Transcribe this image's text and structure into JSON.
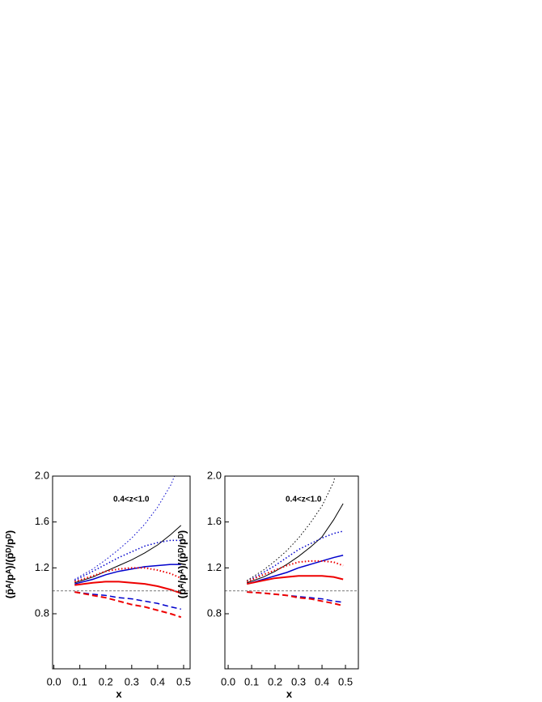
{
  "chart_data": [
    {
      "type": "line",
      "ylabel": "(p̄ᴬ/pᴬ)/(p̄ᴰ/pᴰ)",
      "xlabel": "x",
      "annotation": "0.4<z<1.0",
      "xlim": [
        -0.005,
        0.525
      ],
      "ylim": [
        0.32,
        2.0
      ],
      "xticks": [
        {
          "value": 0,
          "label": "0.0"
        },
        0.1,
        0.2,
        0.3,
        0.4,
        0.5
      ],
      "yticks": [
        0.8,
        1.2,
        1.6,
        {
          "value": 2,
          "label": "2.0"
        }
      ],
      "series": [
        {
          "color": "#000000",
          "dash": "solid",
          "width": 1,
          "x": [
            0.08,
            0.15,
            0.2,
            0.25,
            0.3,
            0.35,
            0.4,
            0.45,
            0.49
          ],
          "values": [
            1.07,
            1.12,
            1.17,
            1.22,
            1.27,
            1.33,
            1.4,
            1.49,
            1.57
          ]
        },
        {
          "color": "#0000cc",
          "dash": "dotted",
          "width": 1,
          "x": [
            0.08,
            0.15,
            0.2,
            0.25,
            0.3,
            0.35,
            0.4,
            0.45,
            0.465
          ],
          "values": [
            1.1,
            1.19,
            1.27,
            1.36,
            1.46,
            1.58,
            1.73,
            1.92,
            2.0
          ]
        },
        {
          "color": "#0000cc",
          "dash": "dotted",
          "width": 1.5,
          "x": [
            0.08,
            0.15,
            0.2,
            0.25,
            0.3,
            0.35,
            0.4,
            0.45,
            0.49
          ],
          "values": [
            1.09,
            1.17,
            1.23,
            1.29,
            1.34,
            1.39,
            1.42,
            1.44,
            1.44
          ]
        },
        {
          "color": "#0000cc",
          "dash": "solid",
          "width": 1.5,
          "x": [
            0.08,
            0.15,
            0.2,
            0.25,
            0.3,
            0.35,
            0.4,
            0.45,
            0.49
          ],
          "values": [
            1.06,
            1.1,
            1.14,
            1.17,
            1.19,
            1.21,
            1.22,
            1.23,
            1.23
          ]
        },
        {
          "color": "#0000cc",
          "dash": "dashed",
          "width": 1.5,
          "x": [
            0.08,
            0.15,
            0.2,
            0.25,
            0.3,
            0.35,
            0.4,
            0.45,
            0.49
          ],
          "values": [
            0.99,
            0.97,
            0.96,
            0.94,
            0.93,
            0.91,
            0.89,
            0.86,
            0.84
          ]
        },
        {
          "color": "#ee0000",
          "dash": "solid",
          "width": 2,
          "x": [
            0.08,
            0.15,
            0.2,
            0.25,
            0.3,
            0.35,
            0.4,
            0.45,
            0.49
          ],
          "values": [
            1.05,
            1.07,
            1.08,
            1.08,
            1.07,
            1.06,
            1.04,
            1.01,
            0.98
          ]
        },
        {
          "color": "#ee0000",
          "dash": "dotted",
          "width": 2,
          "x": [
            0.08,
            0.15,
            0.2,
            0.25,
            0.3,
            0.35,
            0.4,
            0.45,
            0.49
          ],
          "values": [
            1.08,
            1.13,
            1.17,
            1.19,
            1.2,
            1.2,
            1.18,
            1.15,
            1.11
          ]
        },
        {
          "color": "#ee0000",
          "dash": "dashed",
          "width": 2,
          "x": [
            0.08,
            0.15,
            0.2,
            0.25,
            0.3,
            0.35,
            0.4,
            0.45,
            0.49
          ],
          "values": [
            0.99,
            0.96,
            0.94,
            0.91,
            0.88,
            0.86,
            0.83,
            0.8,
            0.77
          ]
        },
        {
          "color": "#888888",
          "dash": "short",
          "width": 1.2,
          "x": [
            -0.005,
            0.525
          ],
          "values": [
            1.0,
            1.0
          ]
        }
      ]
    },
    {
      "type": "line",
      "ylabel": "(p̄ᴬ/pᴬ)/(p̄ᴰ/pᴰ)",
      "xlabel": "x",
      "annotation": "0.4<z<1.0",
      "xlim": [
        -0.014,
        0.555
      ],
      "ylim": [
        0.32,
        2.0
      ],
      "xticks": [
        {
          "value": 0,
          "label": "0.0"
        },
        0.1,
        0.2,
        0.3,
        0.4,
        0.5
      ],
      "yticks": [
        0.8,
        1.2,
        1.6,
        {
          "value": 2,
          "label": "2.0"
        }
      ],
      "series": [
        {
          "color": "#000000",
          "dash": "solid",
          "width": 1,
          "x": [
            0.08,
            0.15,
            0.2,
            0.25,
            0.3,
            0.35,
            0.4,
            0.45,
            0.49
          ],
          "values": [
            1.07,
            1.12,
            1.17,
            1.23,
            1.3,
            1.38,
            1.47,
            1.62,
            1.76
          ]
        },
        {
          "color": "#000000",
          "dash": "dotted",
          "width": 1,
          "x": [
            0.08,
            0.15,
            0.2,
            0.25,
            0.3,
            0.35,
            0.4,
            0.45,
            0.455
          ],
          "values": [
            1.09,
            1.18,
            1.26,
            1.35,
            1.46,
            1.59,
            1.74,
            1.95,
            2.0
          ]
        },
        {
          "color": "#0000cc",
          "dash": "dotted",
          "width": 1.5,
          "x": [
            0.08,
            0.15,
            0.2,
            0.25,
            0.3,
            0.35,
            0.4,
            0.45,
            0.49
          ],
          "values": [
            1.08,
            1.16,
            1.22,
            1.29,
            1.36,
            1.41,
            1.46,
            1.5,
            1.52
          ]
        },
        {
          "color": "#0000cc",
          "dash": "solid",
          "width": 1.5,
          "x": [
            0.08,
            0.15,
            0.2,
            0.25,
            0.3,
            0.35,
            0.4,
            0.45,
            0.49
          ],
          "values": [
            1.06,
            1.1,
            1.13,
            1.16,
            1.2,
            1.23,
            1.26,
            1.29,
            1.31
          ]
        },
        {
          "color": "#0000cc",
          "dash": "dashed",
          "width": 1.5,
          "x": [
            0.08,
            0.15,
            0.2,
            0.25,
            0.3,
            0.35,
            0.4,
            0.45,
            0.49
          ],
          "values": [
            0.99,
            0.98,
            0.97,
            0.96,
            0.95,
            0.94,
            0.93,
            0.91,
            0.9
          ]
        },
        {
          "color": "#ee0000",
          "dash": "solid",
          "width": 2,
          "x": [
            0.08,
            0.15,
            0.2,
            0.25,
            0.3,
            0.35,
            0.4,
            0.45,
            0.49
          ],
          "values": [
            1.06,
            1.09,
            1.11,
            1.12,
            1.13,
            1.13,
            1.13,
            1.12,
            1.1
          ]
        },
        {
          "color": "#ee0000",
          "dash": "dotted",
          "width": 2,
          "x": [
            0.08,
            0.15,
            0.2,
            0.25,
            0.3,
            0.35,
            0.4,
            0.45,
            0.49
          ],
          "values": [
            1.08,
            1.14,
            1.18,
            1.22,
            1.25,
            1.26,
            1.26,
            1.25,
            1.22
          ]
        },
        {
          "color": "#ee0000",
          "dash": "dashed",
          "width": 2,
          "x": [
            0.08,
            0.15,
            0.2,
            0.25,
            0.3,
            0.35,
            0.4,
            0.45,
            0.49
          ],
          "values": [
            0.99,
            0.98,
            0.97,
            0.96,
            0.94,
            0.93,
            0.91,
            0.89,
            0.87
          ]
        },
        {
          "color": "#888888",
          "dash": "short",
          "width": 1.2,
          "x": [
            -0.014,
            0.555
          ],
          "values": [
            1.0,
            1.0
          ]
        }
      ]
    }
  ]
}
